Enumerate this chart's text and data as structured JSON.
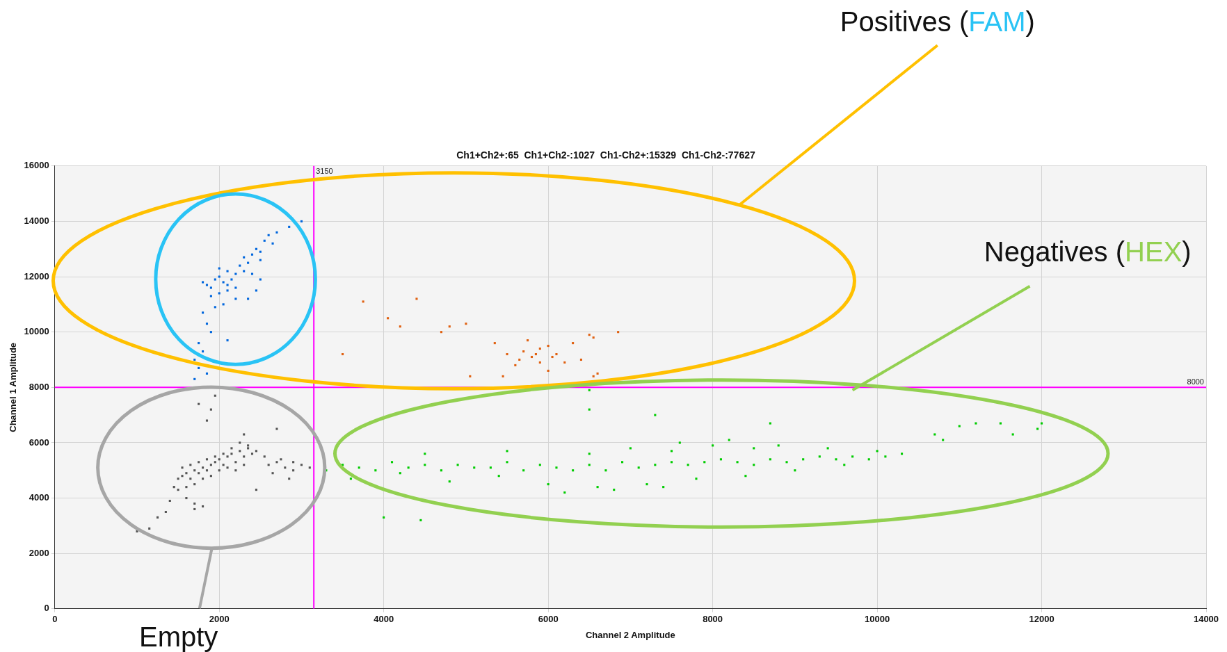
{
  "chart_data": {
    "type": "scatter",
    "title": "Ch1+Ch2+:65  Ch1+Ch2-:1027  Ch1-Ch2+:15329  Ch1-Ch2-:77627",
    "xlabel": "Channel 2 Amplitude",
    "ylabel": "Channel 1 Amplitude",
    "xlim": [
      0,
      14000
    ],
    "ylim": [
      0,
      16000
    ],
    "xticks": [
      0,
      2000,
      4000,
      6000,
      8000,
      10000,
      12000,
      14000
    ],
    "yticks": [
      0,
      2000,
      4000,
      6000,
      8000,
      10000,
      12000,
      14000,
      16000
    ],
    "grid": true,
    "legend": false,
    "marker": "square",
    "ref_lines": [
      {
        "axis": "x",
        "value": 3150,
        "label": "3150",
        "color": "#ff00ff"
      },
      {
        "axis": "y",
        "value": 8000,
        "label": "8000",
        "color": "#ff00ff"
      }
    ],
    "annotations": [
      "Positives (FAM)",
      {
        "text": "Negatives (HEX)",
        "x": 9700,
        "y": 7900
      },
      "Empty"
    ],
    "series": [
      {
        "color": "#555555",
        "x": [
          1500,
          1550,
          1600,
          1650,
          1700,
          1750,
          1800,
          1850,
          1900,
          1950,
          2000,
          2050,
          2100,
          2150,
          2200,
          2250,
          2300,
          2350,
          2400,
          1450,
          1500,
          1600,
          1700,
          1800,
          1900,
          2000,
          2100,
          2200,
          2300,
          1550,
          1650,
          1750,
          1850,
          1950,
          2050,
          2150,
          2250,
          2350,
          2450,
          2550,
          2600,
          2700,
          2800,
          2900,
          3000,
          3100,
          2650,
          2750,
          2900,
          1000,
          1150,
          1250,
          1350,
          1400,
          1700,
          1800,
          1850,
          1900,
          1950,
          1750,
          2300,
          2700,
          2450,
          2850,
          1600,
          1700
        ],
        "values": [
          4700,
          4800,
          4900,
          4700,
          5000,
          4900,
          5100,
          5000,
          5200,
          5300,
          5400,
          5200,
          5500,
          5600,
          5300,
          5700,
          5500,
          5800,
          5600,
          4400,
          4300,
          4400,
          4500,
          4700,
          4800,
          5000,
          5100,
          5000,
          5200,
          5100,
          5200,
          5300,
          5400,
          5500,
          5600,
          5800,
          6000,
          5900,
          5700,
          5500,
          5200,
          5300,
          5100,
          5000,
          5200,
          5100,
          4900,
          5400,
          5300,
          2800,
          2900,
          3300,
          3500,
          3900,
          3600,
          3700,
          6800,
          7200,
          7700,
          7400,
          6300,
          6500,
          4300,
          4700,
          4000,
          3800
        ]
      },
      {
        "color": "#0066dd",
        "x": [
          1800,
          1850,
          1900,
          1950,
          2000,
          2050,
          2100,
          2150,
          2200,
          1900,
          2000,
          2100,
          2200,
          2000,
          2100,
          1950,
          2050,
          2250,
          2300,
          2350,
          2400,
          2450,
          2500,
          2550,
          2600,
          2300,
          2400,
          2500,
          2650,
          2700,
          2850,
          3000,
          2200,
          2450,
          2350,
          1800,
          1850,
          1900,
          1750,
          1800,
          1700,
          1750,
          1850,
          1700,
          1950,
          2100,
          2500
        ],
        "values": [
          11800,
          11700,
          11600,
          11900,
          12000,
          11800,
          11700,
          11900,
          12100,
          11300,
          11400,
          11500,
          11600,
          12300,
          12200,
          10900,
          11000,
          12400,
          12700,
          12500,
          12800,
          13000,
          12900,
          13300,
          13500,
          12200,
          12100,
          12600,
          13200,
          13600,
          13800,
          14000,
          11200,
          11500,
          11200,
          10700,
          10300,
          10000,
          9600,
          9300,
          9000,
          8700,
          8500,
          8300,
          null,
          9700,
          11900
        ]
      },
      {
        "color": "#e06010",
        "x": [
          3750,
          4050,
          4200,
          4400,
          4700,
          4800,
          5000,
          3500,
          5050,
          5450,
          5350,
          5500,
          5650,
          5700,
          5800,
          5900,
          6000,
          6100,
          5750,
          5900,
          6300,
          6400,
          6500,
          6550,
          6850,
          6200,
          6000,
          6600,
          6550,
          5600,
          5850,
          6050
        ],
        "values": [
          11100,
          10500,
          10200,
          11200,
          10000,
          10200,
          10300,
          9200,
          8400,
          8400,
          9600,
          9200,
          9000,
          9300,
          9100,
          9400,
          9500,
          9200,
          9700,
          8900,
          9600,
          9000,
          9900,
          9800,
          10000,
          8900,
          8600,
          8500,
          8400,
          8800,
          9200,
          9100
        ]
      },
      {
        "color": "#00cc00",
        "x": [
          3300,
          3500,
          3700,
          3900,
          4100,
          4300,
          4500,
          4700,
          4900,
          5100,
          5300,
          5500,
          5700,
          5900,
          6100,
          6300,
          6500,
          6700,
          6900,
          7100,
          7300,
          7500,
          7700,
          7900,
          8100,
          8300,
          8500,
          8700,
          8900,
          9100,
          9300,
          9500,
          9700,
          9900,
          10100,
          10300,
          3600,
          4200,
          4800,
          5400,
          6000,
          6600,
          7200,
          7800,
          8400,
          9000,
          9600,
          4500,
          5500,
          6500,
          7500,
          8000,
          8500,
          7000,
          7600,
          8200,
          8800,
          9400,
          10000,
          6200,
          6800,
          7400,
          4000,
          4450,
          6500,
          6500,
          7300,
          8700,
          10700,
          10800,
          11000,
          11200,
          11500,
          11650,
          11950,
          12000
        ],
        "values": [
          5000,
          5200,
          5100,
          5000,
          5300,
          5100,
          5200,
          5000,
          5200,
          5100,
          5100,
          5300,
          5000,
          5200,
          5100,
          5000,
          5200,
          5000,
          5300,
          5100,
          5200,
          5300,
          5200,
          5300,
          5400,
          5300,
          5200,
          5400,
          5300,
          5400,
          5500,
          5400,
          5500,
          5400,
          5500,
          5600,
          4700,
          4900,
          4600,
          4800,
          4500,
          4400,
          4500,
          4700,
          4800,
          5000,
          5200,
          5600,
          5700,
          5600,
          5700,
          5900,
          5800,
          5800,
          6000,
          6100,
          5900,
          5800,
          5700,
          4200,
          4300,
          4400,
          3300,
          3200,
          7900,
          7200,
          7000,
          6700,
          6300,
          6100,
          6600,
          6700,
          6700,
          6300,
          6500,
          6700
        ]
      }
    ]
  }
}
